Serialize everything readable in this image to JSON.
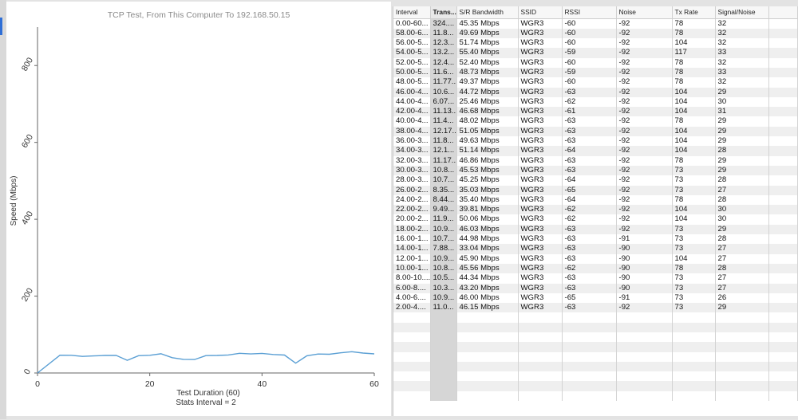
{
  "chart_data": {
    "type": "line",
    "title": "TCP Test,  From This Computer To 192.168.50.15",
    "xlabel": "Test Duration (60)",
    "xlabel2": "Stats Interval = 2",
    "ylabel": "Speed (Mbps)",
    "xlim": [
      0,
      60
    ],
    "ylim": [
      0,
      900
    ],
    "x_ticks": [
      "0",
      "20",
      "40",
      "60"
    ],
    "y_ticks": [
      "0",
      "200",
      "400",
      "600",
      "800"
    ],
    "color": "#5a9fd4",
    "series": [
      {
        "x": [
          0,
          4,
          6,
          8,
          10,
          12,
          14,
          16,
          18,
          20,
          22,
          24,
          26,
          28,
          30,
          32,
          34,
          36,
          38,
          40,
          42,
          44,
          46,
          48,
          50,
          52,
          54,
          56,
          58,
          60
        ],
        "values": [
          0,
          46.15,
          46.0,
          43.2,
          44.34,
          45.56,
          45.9,
          33.04,
          44.98,
          46.03,
          50.06,
          39.81,
          35.4,
          35.03,
          45.25,
          45.53,
          46.86,
          51.14,
          49.63,
          51.05,
          48.02,
          46.68,
          25.46,
          44.72,
          49.37,
          48.73,
          52.4,
          55.4,
          51.74,
          49.69
        ]
      }
    ]
  },
  "table": {
    "columns": [
      "Interval",
      "Trans...",
      "S/R Bandwidth",
      "SSID",
      "RSSI",
      "Noise",
      "Tx Rate",
      "Signal/Noise"
    ],
    "rows": [
      [
        "0.00-60...",
        "324....",
        "45.35 Mbps",
        "WGR3",
        "-60",
        "-92",
        "78",
        "32"
      ],
      [
        "58.00-6...",
        "11.8...",
        "49.69 Mbps",
        "WGR3",
        "-60",
        "-92",
        "78",
        "32"
      ],
      [
        "56.00-5...",
        "12.3...",
        "51.74 Mbps",
        "WGR3",
        "-60",
        "-92",
        "104",
        "32"
      ],
      [
        "54.00-5...",
        "13.2...",
        "55.40 Mbps",
        "WGR3",
        "-59",
        "-92",
        "117",
        "33"
      ],
      [
        "52.00-5...",
        "12.4...",
        "52.40 Mbps",
        "WGR3",
        "-60",
        "-92",
        "78",
        "32"
      ],
      [
        "50.00-5...",
        "11.6...",
        "48.73 Mbps",
        "WGR3",
        "-59",
        "-92",
        "78",
        "33"
      ],
      [
        "48.00-5...",
        "11.77...",
        "49.37 Mbps",
        "WGR3",
        "-60",
        "-92",
        "78",
        "32"
      ],
      [
        "46.00-4...",
        "10.6...",
        "44.72 Mbps",
        "WGR3",
        "-63",
        "-92",
        "104",
        "29"
      ],
      [
        "44.00-4...",
        "6.07...",
        "25.46 Mbps",
        "WGR3",
        "-62",
        "-92",
        "104",
        "30"
      ],
      [
        "42.00-4...",
        "11.13...",
        "46.68 Mbps",
        "WGR3",
        "-61",
        "-92",
        "104",
        "31"
      ],
      [
        "40.00-4...",
        "11.4...",
        "48.02 Mbps",
        "WGR3",
        "-63",
        "-92",
        "78",
        "29"
      ],
      [
        "38.00-4...",
        "12.17...",
        "51.05 Mbps",
        "WGR3",
        "-63",
        "-92",
        "104",
        "29"
      ],
      [
        "36.00-3...",
        "11.8...",
        "49.63 Mbps",
        "WGR3",
        "-63",
        "-92",
        "104",
        "29"
      ],
      [
        "34.00-3...",
        "12.1...",
        "51.14 Mbps",
        "WGR3",
        "-64",
        "-92",
        "104",
        "28"
      ],
      [
        "32.00-3...",
        "11.17...",
        "46.86 Mbps",
        "WGR3",
        "-63",
        "-92",
        "78",
        "29"
      ],
      [
        "30.00-3...",
        "10.8...",
        "45.53 Mbps",
        "WGR3",
        "-63",
        "-92",
        "73",
        "29"
      ],
      [
        "28.00-3...",
        "10.7...",
        "45.25 Mbps",
        "WGR3",
        "-64",
        "-92",
        "73",
        "28"
      ],
      [
        "26.00-2...",
        "8.35...",
        "35.03 Mbps",
        "WGR3",
        "-65",
        "-92",
        "73",
        "27"
      ],
      [
        "24.00-2...",
        "8.44...",
        "35.40 Mbps",
        "WGR3",
        "-64",
        "-92",
        "78",
        "28"
      ],
      [
        "22.00-2...",
        "9.49...",
        "39.81 Mbps",
        "WGR3",
        "-62",
        "-92",
        "104",
        "30"
      ],
      [
        "20.00-2...",
        "11.9...",
        "50.06 Mbps",
        "WGR3",
        "-62",
        "-92",
        "104",
        "30"
      ],
      [
        "18.00-2...",
        "10.9...",
        "46.03 Mbps",
        "WGR3",
        "-63",
        "-92",
        "73",
        "29"
      ],
      [
        "16.00-1...",
        "10.7...",
        "44.98 Mbps",
        "WGR3",
        "-63",
        "-91",
        "73",
        "28"
      ],
      [
        "14.00-1...",
        "7.88...",
        "33.04 Mbps",
        "WGR3",
        "-63",
        "-90",
        "73",
        "27"
      ],
      [
        "12.00-1...",
        "10.9...",
        "45.90 Mbps",
        "WGR3",
        "-63",
        "-90",
        "104",
        "27"
      ],
      [
        "10.00-1...",
        "10.8...",
        "45.56 Mbps",
        "WGR3",
        "-62",
        "-90",
        "78",
        "28"
      ],
      [
        "8.00-10....",
        "10.5...",
        "44.34 Mbps",
        "WGR3",
        "-63",
        "-90",
        "73",
        "27"
      ],
      [
        "6.00-8....",
        "10.3...",
        "43.20 Mbps",
        "WGR3",
        "-63",
        "-90",
        "73",
        "27"
      ],
      [
        "4.00-6....",
        "10.9...",
        "46.00 Mbps",
        "WGR3",
        "-65",
        "-91",
        "73",
        "26"
      ],
      [
        "2.00-4....",
        "11.0...",
        "46.15 Mbps",
        "WGR3",
        "-63",
        "-92",
        "73",
        "29"
      ]
    ],
    "empty_rows": 9,
    "selected_column": 1
  }
}
